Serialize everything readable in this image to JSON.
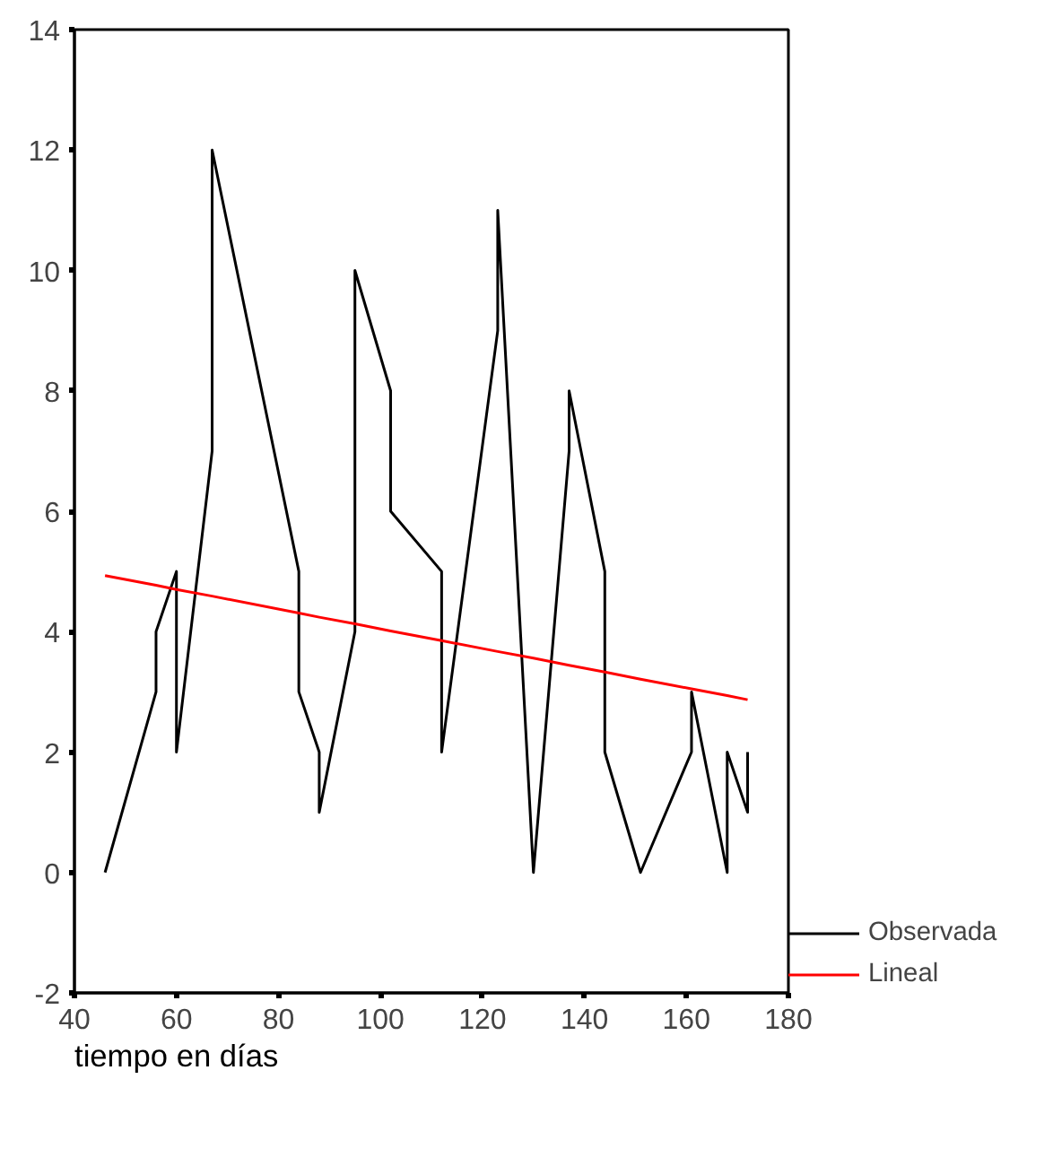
{
  "chart_data": {
    "type": "line",
    "xlabel": "tiempo en días",
    "xlim": [
      40,
      180
    ],
    "xticks": [
      40,
      60,
      80,
      100,
      120,
      140,
      160,
      180
    ],
    "ylim": [
      -2,
      14
    ],
    "yticks": [
      -2,
      0,
      2,
      4,
      6,
      8,
      10,
      12,
      14
    ],
    "grid": false,
    "legend": "bottom right",
    "series": [
      {
        "name": "Observada",
        "color": "#000000",
        "x": [
          46,
          56,
          56,
          60,
          60,
          67,
          67,
          84,
          84,
          88,
          88,
          95,
          95,
          102,
          102,
          112,
          112,
          123,
          123,
          130,
          137,
          137,
          144,
          144,
          151,
          161,
          161,
          168,
          168,
          172,
          172
        ],
        "values": [
          0,
          3,
          4,
          5,
          2,
          7,
          12,
          5,
          3,
          2,
          1,
          4,
          10,
          8,
          6,
          5,
          2,
          9,
          11,
          0,
          7,
          8,
          5,
          2,
          0,
          2,
          3,
          0,
          2,
          1,
          2
        ]
      },
      {
        "name": "Lineal",
        "color": "#ff0000",
        "x": [
          46,
          56,
          60,
          67,
          84,
          88,
          95,
          102,
          112,
          123,
          130,
          137,
          144,
          151,
          161,
          168,
          172
        ],
        "values": [
          4.93,
          4.77,
          4.7,
          4.59,
          4.31,
          4.24,
          4.13,
          4.01,
          3.85,
          3.67,
          3.56,
          3.44,
          3.33,
          3.21,
          3.05,
          2.94,
          2.87
        ]
      }
    ]
  }
}
